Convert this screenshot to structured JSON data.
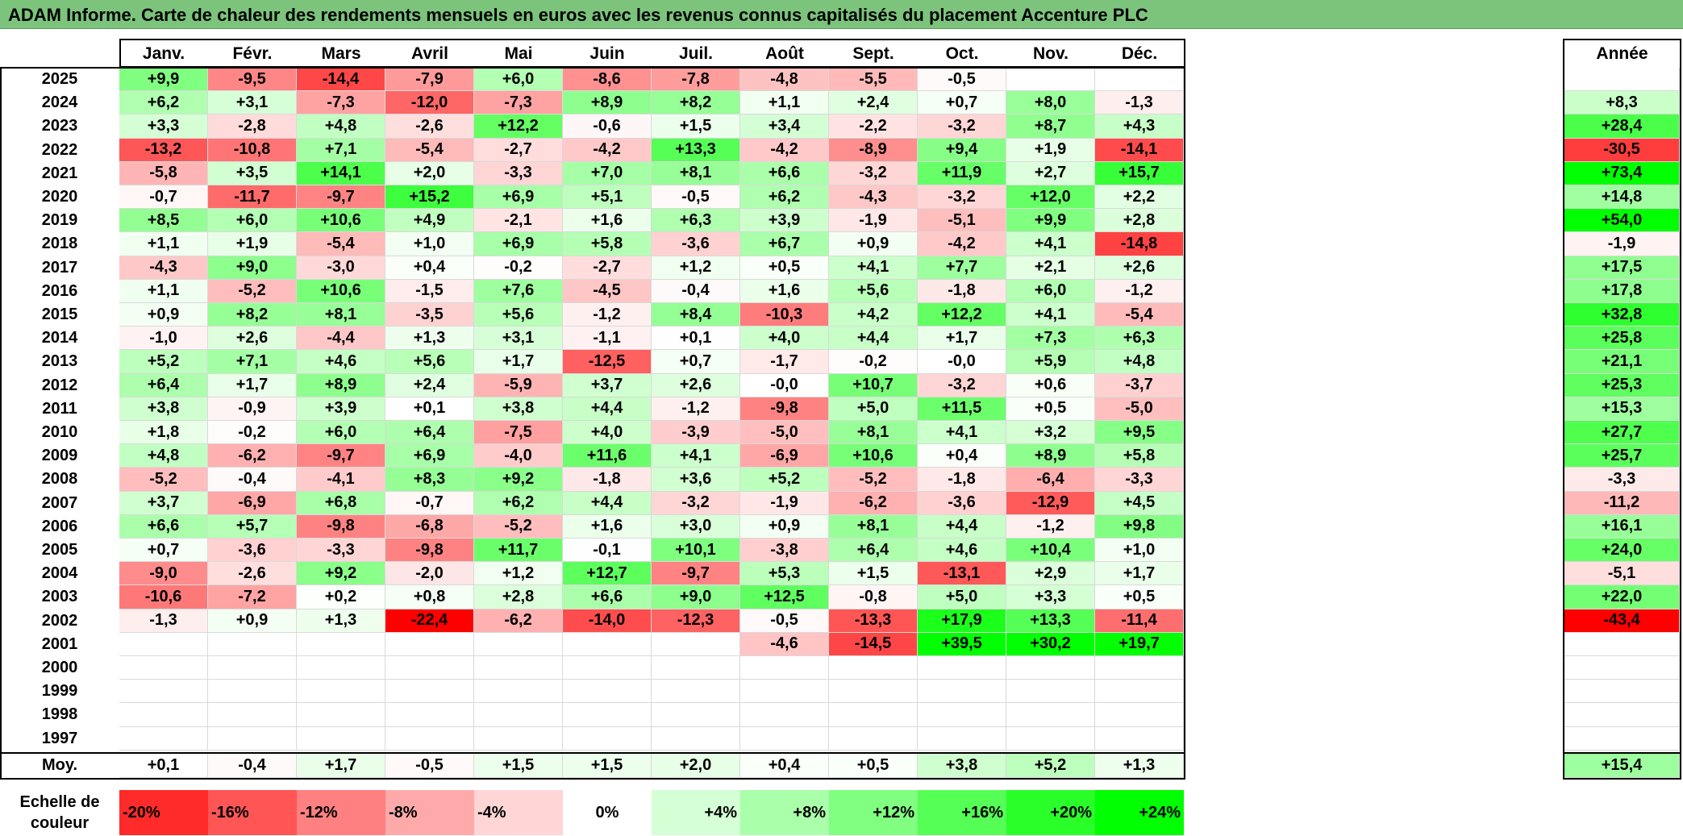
{
  "title": "ADAM Informe. Carte de chaleur des rendements mensuels en euros avec les revenus connus capitalisés du placement Accenture PLC",
  "colors": {
    "title_bg": "#7cc47c",
    "negative": "#ff0000",
    "positive": "#00ff00",
    "neutral": "#ffffff"
  },
  "chart_data": {
    "type": "heatmap",
    "title": "ADAM Informe. Carte de chaleur des rendements mensuels en euros avec les revenus connus capitalisés du placement Accenture PLC",
    "months": [
      "Janv.",
      "Févr.",
      "Mars",
      "Avril",
      "Mai",
      "Juin",
      "Juil.",
      "Août",
      "Sept.",
      "Oct.",
      "Nov.",
      "Déc."
    ],
    "year_header": "Année",
    "rows": [
      {
        "year": "2025",
        "values": [
          "+9,9",
          "-9,5",
          "-14,4",
          "-7,9",
          "+6,0",
          "-8,6",
          "-7,8",
          "-4,8",
          "-5,5",
          "-0,5",
          "",
          ""
        ],
        "annual": ""
      },
      {
        "year": "2024",
        "values": [
          "+6,2",
          "+3,1",
          "-7,3",
          "-12,0",
          "-7,3",
          "+8,9",
          "+8,2",
          "+1,1",
          "+2,4",
          "+0,7",
          "+8,0",
          "-1,3"
        ],
        "annual": "+8,3"
      },
      {
        "year": "2023",
        "values": [
          "+3,3",
          "-2,8",
          "+4,8",
          "-2,6",
          "+12,2",
          "-0,6",
          "+1,5",
          "+3,4",
          "-2,2",
          "-3,2",
          "+8,7",
          "+4,3"
        ],
        "annual": "+28,4"
      },
      {
        "year": "2022",
        "values": [
          "-13,2",
          "-10,8",
          "+7,1",
          "-5,4",
          "-2,7",
          "-4,2",
          "+13,3",
          "-4,2",
          "-8,9",
          "+9,4",
          "+1,9",
          "-14,1"
        ],
        "annual": "-30,5"
      },
      {
        "year": "2021",
        "values": [
          "-5,8",
          "+3,5",
          "+14,1",
          "+2,0",
          "-3,3",
          "+7,0",
          "+8,1",
          "+6,6",
          "-3,2",
          "+11,9",
          "+2,7",
          "+15,7"
        ],
        "annual": "+73,4"
      },
      {
        "year": "2020",
        "values": [
          "-0,7",
          "-11,7",
          "-9,7",
          "+15,2",
          "+6,9",
          "+5,1",
          "-0,5",
          "+6,2",
          "-4,3",
          "-3,2",
          "+12,0",
          "+2,2"
        ],
        "annual": "+14,8"
      },
      {
        "year": "2019",
        "values": [
          "+8,5",
          "+6,0",
          "+10,6",
          "+4,9",
          "-2,1",
          "+1,6",
          "+6,3",
          "+3,9",
          "-1,9",
          "-5,1",
          "+9,9",
          "+2,8"
        ],
        "annual": "+54,0"
      },
      {
        "year": "2018",
        "values": [
          "+1,1",
          "+1,9",
          "-5,4",
          "+1,0",
          "+6,9",
          "+5,8",
          "-3,6",
          "+6,7",
          "+0,9",
          "-4,2",
          "+4,1",
          "-14,8"
        ],
        "annual": "-1,9"
      },
      {
        "year": "2017",
        "values": [
          "-4,3",
          "+9,0",
          "-3,0",
          "+0,4",
          "-0,2",
          "-2,7",
          "+1,2",
          "+0,5",
          "+4,1",
          "+7,7",
          "+2,1",
          "+2,6"
        ],
        "annual": "+17,5"
      },
      {
        "year": "2016",
        "values": [
          "+1,1",
          "-5,2",
          "+10,6",
          "-1,5",
          "+7,6",
          "-4,5",
          "-0,4",
          "+1,6",
          "+5,6",
          "-1,8",
          "+6,0",
          "-1,2"
        ],
        "annual": "+17,8"
      },
      {
        "year": "2015",
        "values": [
          "+0,9",
          "+8,2",
          "+8,1",
          "-3,5",
          "+5,6",
          "-1,2",
          "+8,4",
          "-10,3",
          "+4,2",
          "+12,2",
          "+4,1",
          "-5,4"
        ],
        "annual": "+32,8"
      },
      {
        "year": "2014",
        "values": [
          "-1,0",
          "+2,6",
          "-4,4",
          "+1,3",
          "+3,1",
          "-1,1",
          "+0,1",
          "+4,0",
          "+4,4",
          "+1,7",
          "+7,3",
          "+6,3"
        ],
        "annual": "+25,8"
      },
      {
        "year": "2013",
        "values": [
          "+5,2",
          "+7,1",
          "+4,6",
          "+5,6",
          "+1,7",
          "-12,5",
          "+0,7",
          "-1,7",
          "-0,2",
          "-0,0",
          "+5,9",
          "+4,8"
        ],
        "annual": "+21,1"
      },
      {
        "year": "2012",
        "values": [
          "+6,4",
          "+1,7",
          "+8,9",
          "+2,4",
          "-5,9",
          "+3,7",
          "+2,6",
          "-0,0",
          "+10,7",
          "-3,2",
          "+0,6",
          "-3,7"
        ],
        "annual": "+25,3"
      },
      {
        "year": "2011",
        "values": [
          "+3,8",
          "-0,9",
          "+3,9",
          "+0,1",
          "+3,8",
          "+4,4",
          "-1,2",
          "-9,8",
          "+5,0",
          "+11,5",
          "+0,5",
          "-5,0"
        ],
        "annual": "+15,3"
      },
      {
        "year": "2010",
        "values": [
          "+1,8",
          "-0,2",
          "+6,0",
          "+6,4",
          "-7,5",
          "+4,0",
          "-3,9",
          "-5,0",
          "+8,1",
          "+4,1",
          "+3,2",
          "+9,5"
        ],
        "annual": "+27,7"
      },
      {
        "year": "2009",
        "values": [
          "+4,8",
          "-6,2",
          "-9,7",
          "+6,9",
          "-4,0",
          "+11,6",
          "+4,1",
          "-6,9",
          "+10,6",
          "+0,4",
          "+8,9",
          "+5,8"
        ],
        "annual": "+25,7"
      },
      {
        "year": "2008",
        "values": [
          "-5,2",
          "-0,4",
          "-4,1",
          "+8,3",
          "+9,2",
          "-1,8",
          "+3,6",
          "+5,2",
          "-5,2",
          "-1,8",
          "-6,4",
          "-3,3"
        ],
        "annual": "-3,3"
      },
      {
        "year": "2007",
        "values": [
          "+3,7",
          "-6,9",
          "+6,8",
          "-0,7",
          "+6,2",
          "+4,4",
          "-3,2",
          "-1,9",
          "-6,2",
          "-3,6",
          "-12,9",
          "+4,5"
        ],
        "annual": "-11,2"
      },
      {
        "year": "2006",
        "values": [
          "+6,6",
          "+5,7",
          "-9,8",
          "-6,8",
          "-5,2",
          "+1,6",
          "+3,0",
          "+0,9",
          "+8,1",
          "+4,4",
          "-1,2",
          "+9,8"
        ],
        "annual": "+16,1"
      },
      {
        "year": "2005",
        "values": [
          "+0,7",
          "-3,6",
          "-3,3",
          "-9,8",
          "+11,7",
          "-0,1",
          "+10,1",
          "-3,8",
          "+6,4",
          "+4,6",
          "+10,4",
          "+1,0"
        ],
        "annual": "+24,0"
      },
      {
        "year": "2004",
        "values": [
          "-9,0",
          "-2,6",
          "+9,2",
          "-2,0",
          "+1,2",
          "+12,7",
          "-9,7",
          "+5,3",
          "+1,5",
          "-13,1",
          "+2,9",
          "+1,7"
        ],
        "annual": "-5,1"
      },
      {
        "year": "2003",
        "values": [
          "-10,6",
          "-7,2",
          "+0,2",
          "+0,8",
          "+2,8",
          "+6,6",
          "+9,0",
          "+12,5",
          "-0,8",
          "+5,0",
          "+3,3",
          "+0,5"
        ],
        "annual": "+22,0"
      },
      {
        "year": "2002",
        "values": [
          "-1,3",
          "+0,9",
          "+1,3",
          "-22,4",
          "-6,2",
          "-14,0",
          "-12,3",
          "-0,5",
          "-13,3",
          "+17,9",
          "+13,3",
          "-11,4"
        ],
        "annual": "-43,4"
      },
      {
        "year": "2001",
        "values": [
          "",
          "",
          "",
          "",
          "",
          "",
          "",
          "-4,6",
          "-14,5",
          "+39,5",
          "+30,2",
          "+19,7"
        ],
        "annual": ""
      },
      {
        "year": "2000",
        "values": [
          "",
          "",
          "",
          "",
          "",
          "",
          "",
          "",
          "",
          "",
          "",
          ""
        ],
        "annual": ""
      },
      {
        "year": "1999",
        "values": [
          "",
          "",
          "",
          "",
          "",
          "",
          "",
          "",
          "",
          "",
          "",
          ""
        ],
        "annual": ""
      },
      {
        "year": "1998",
        "values": [
          "",
          "",
          "",
          "",
          "",
          "",
          "",
          "",
          "",
          "",
          "",
          ""
        ],
        "annual": ""
      },
      {
        "year": "1997",
        "values": [
          "",
          "",
          "",
          "",
          "",
          "",
          "",
          "",
          "",
          "",
          "",
          ""
        ],
        "annual": ""
      }
    ],
    "average": {
      "label": "Moy.",
      "values": [
        "+0,1",
        "-0,4",
        "+1,7",
        "-0,5",
        "+1,5",
        "+1,5",
        "+2,0",
        "+0,4",
        "+0,5",
        "+3,8",
        "+5,2",
        "+1,3"
      ],
      "annual": "+15,4"
    },
    "scale": {
      "label": "Echelle de couleur",
      "values": [
        "-20%",
        "-16%",
        "-12%",
        "-8%",
        "-4%",
        "0%",
        "+4%",
        "+8%",
        "+12%",
        "+16%",
        "+20%",
        "+24%"
      ]
    }
  }
}
